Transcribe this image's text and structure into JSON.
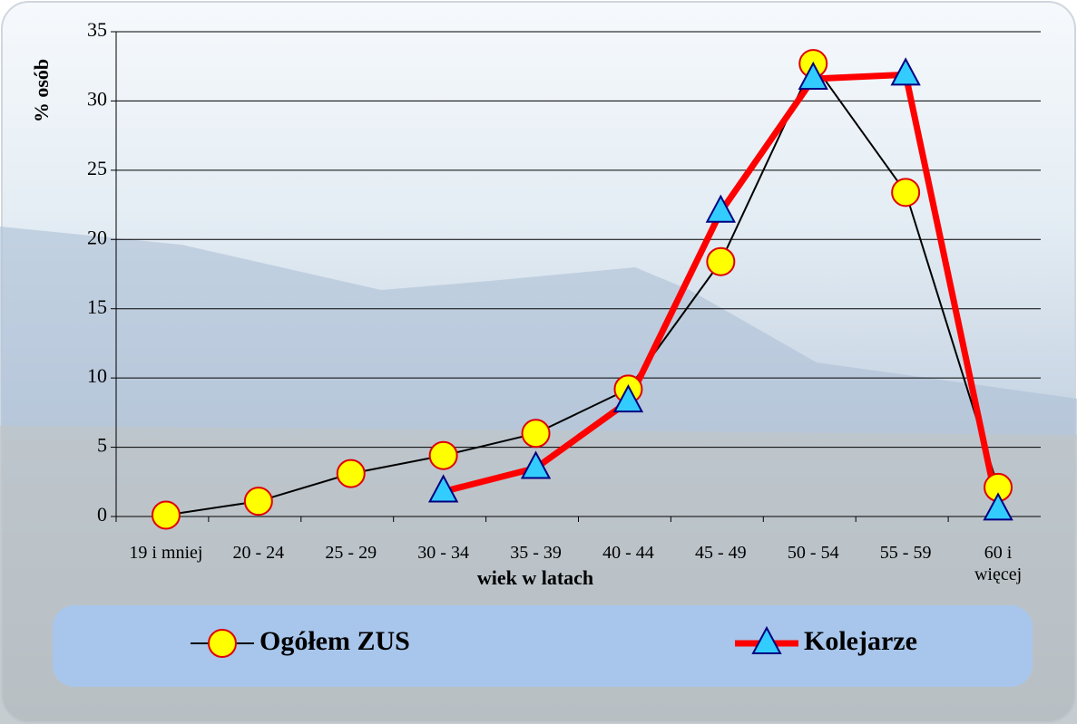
{
  "chart_data": {
    "type": "line",
    "y_label": "% osób",
    "x_label": "wiek w latach",
    "categories": [
      "19 i mniej",
      "20 - 24",
      "25 - 29",
      "30 - 34",
      "35 - 39",
      "40 - 44",
      "45 - 49",
      "50 - 54",
      "55 - 59",
      "60 i więcej"
    ],
    "series": [
      {
        "name": "Ogółem ZUS",
        "color": "#000000",
        "marker": "circle",
        "marker_color": "#ffff00",
        "values": [
          0.1,
          1.1,
          3.1,
          4.4,
          6.0,
          9.2,
          18.4,
          32.7,
          23.4,
          2.1
        ]
      },
      {
        "name": "Kolejarze",
        "color": "#ff0000",
        "marker": "triangle",
        "marker_color": "#33ccff",
        "values": [
          null,
          null,
          null,
          1.8,
          3.5,
          8.3,
          22.0,
          31.6,
          31.9,
          0.5
        ]
      }
    ],
    "ylim": [
      0,
      35
    ],
    "yticks": [
      0,
      5,
      10,
      15,
      20,
      25,
      30,
      35
    ],
    "grid": true,
    "legend": "bottom"
  }
}
